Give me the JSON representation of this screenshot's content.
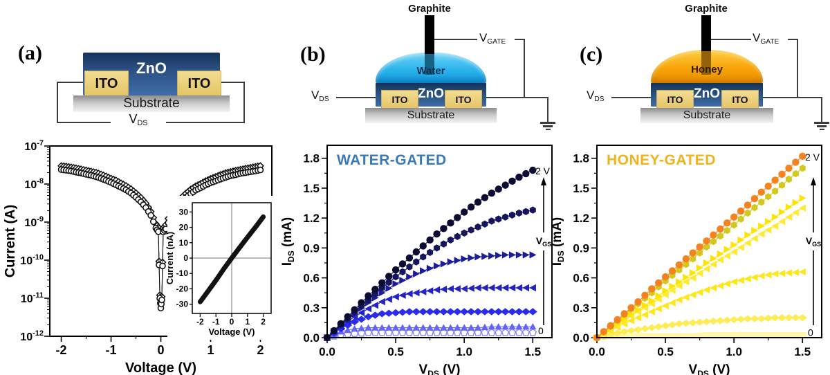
{
  "colors": {
    "water_accent": "#3a7ab8",
    "honey_accent": "#f0b41a",
    "water_liquid": "#2ab3ec",
    "honey_liquid": "#f7a307",
    "zno_blue": "#2c5184",
    "ito_gold": "#edd17c"
  },
  "schematics": {
    "a": {
      "panel_label": "(a)",
      "zno": "ZnO",
      "ito_left": "ITO",
      "ito_right": "ITO",
      "substrate": "Substrate",
      "vds": {
        "main": "V",
        "sub": "DS"
      }
    },
    "b": {
      "panel_label": "(b)",
      "graphite": "Graphite",
      "liquid": "Water",
      "zno": "ZnO",
      "ito_left": "ITO",
      "ito_right": "ITO",
      "substrate": "Substrate",
      "vds": {
        "main": "V",
        "sub": "DS"
      },
      "vgate": {
        "main": "V",
        "sub": "GATE"
      }
    },
    "c": {
      "panel_label": "(c)",
      "graphite": "Graphite",
      "liquid": "Honey",
      "zno": "ZnO",
      "ito_left": "ITO",
      "ito_right": "ITO",
      "substrate": "Substrate",
      "vds": {
        "main": "V",
        "sub": "DS"
      },
      "vgate": {
        "main": "V",
        "sub": "GATE"
      }
    }
  },
  "chart_data": [
    {
      "id": "iv-log",
      "type": "scatter",
      "panel": "a",
      "xlabel": "Voltage (V)",
      "ylabel": "Current (A)",
      "x_ticks": [
        -2,
        -1,
        0,
        1,
        2
      ],
      "x_minor": [
        -1.5,
        -0.5,
        0.5,
        1.5
      ],
      "xlim": [
        -2.23,
        2.23
      ],
      "y_scale": "log",
      "y_exp_range": [
        -12,
        -7
      ],
      "grid": false,
      "series": [
        {
          "name": "iv-sweep-diamonds",
          "marker": "diamond-open",
          "color": "#111111",
          "x": [
            -2.0,
            -1.9,
            -1.8,
            -1.7,
            -1.6,
            -1.5,
            -1.4,
            -1.3,
            -1.2,
            -1.1,
            -1.0,
            -0.9,
            -0.8,
            -0.7,
            -0.6,
            -0.5,
            -0.4,
            -0.3,
            -0.2,
            -0.1,
            -0.05,
            -0.02,
            0,
            0.02,
            0.05,
            0.1,
            0.2,
            0.3,
            0.4,
            0.5,
            0.6,
            0.7,
            0.8,
            0.9,
            1.0,
            1.1,
            1.2,
            1.3,
            1.4,
            1.5,
            1.6,
            1.7,
            1.8,
            1.9,
            2.0
          ],
          "y": [
            3e-08,
            2.9e-08,
            2.75e-08,
            2.6e-08,
            2.45e-08,
            2.3e-08,
            2.15e-08,
            2e-08,
            1.8e-08,
            1.6e-08,
            1.4e-08,
            1.25e-08,
            1.05e-08,
            9e-09,
            7.4e-09,
            5.8e-09,
            4.4e-09,
            3.1e-09,
            1.9e-09,
            9e-10,
            7.2e-10,
            1.2e-11,
            7e-12,
            1.1e-11,
            7e-10,
            8.5e-10,
            1.8e-09,
            3e-09,
            4.2e-09,
            5.6e-09,
            7.2e-09,
            8.8e-09,
            1.02e-08,
            1.2e-08,
            1.38e-08,
            1.55e-08,
            1.75e-08,
            1.95e-08,
            2.1e-08,
            2.25e-08,
            2.4e-08,
            2.55e-08,
            2.7e-08,
            2.85e-08,
            3e-08
          ]
        },
        {
          "name": "iv-sweep-circles",
          "marker": "circle-open",
          "color": "#111111",
          "x": [
            -2.0,
            -1.9,
            -1.8,
            -1.7,
            -1.6,
            -1.5,
            -1.4,
            -1.3,
            -1.2,
            -1.1,
            -1.0,
            -0.9,
            -0.8,
            -0.7,
            -0.6,
            -0.5,
            -0.4,
            -0.3,
            -0.2,
            -0.1,
            -0.05,
            -0.02,
            0,
            0.02,
            0.05,
            0.1,
            0.2,
            0.3,
            0.4,
            0.5,
            0.6,
            0.7,
            0.8,
            0.9,
            1.0,
            1.1,
            1.2,
            1.3,
            1.4,
            1.5,
            1.6,
            1.7,
            1.8,
            1.9,
            2.0
          ],
          "y": [
            2.4e-08,
            2.3e-08,
            2.2e-08,
            2.05e-08,
            1.95e-08,
            1.8e-08,
            1.7e-08,
            1.55e-08,
            1.4e-08,
            1.25e-08,
            1.1e-08,
            9.5e-09,
            8.2e-09,
            7e-09,
            5.8e-09,
            4.5e-09,
            3.4e-09,
            2.4e-09,
            1.5e-09,
            7e-10,
            5.6e-10,
            1e-11,
            5.5e-12,
            9e-12,
            5.5e-10,
            6.6e-10,
            1.4e-09,
            2.3e-09,
            3.3e-09,
            4.4e-09,
            5.6e-09,
            6.9e-09,
            8e-09,
            9.4e-09,
            1.08e-08,
            1.2e-08,
            1.35e-08,
            1.5e-08,
            1.65e-08,
            1.75e-08,
            1.9e-08,
            2e-08,
            2.1e-08,
            2.2e-08,
            2.35e-08
          ]
        }
      ],
      "inset": {
        "xlabel": "Voltage (V)",
        "ylabel": "Current (nA)",
        "xlim": [
          -2.5,
          2.5
        ],
        "ylim": [
          -36,
          36
        ],
        "x_ticks": [
          -2,
          -1,
          0,
          1,
          2
        ],
        "y_ticks": [
          -30,
          -20,
          -10,
          0,
          10,
          20,
          30
        ],
        "series": [
          {
            "name": "linear-iv-band",
            "color": "#111111",
            "width": 7,
            "x": [
              -2,
              -1.5,
              -1,
              -0.5,
              0,
              0.5,
              1,
              1.5,
              2
            ],
            "y": [
              -28.5,
              -21.5,
              -14.5,
              -7,
              0,
              6.8,
              13.5,
              20,
              26.8
            ]
          }
        ]
      }
    },
    {
      "id": "water-output",
      "type": "scatter",
      "panel": "b",
      "title": "WATER-GATED",
      "title_color": "#3a7ab8",
      "xlabel": {
        "main": "V",
        "sub": "DS",
        "rest": " (V)"
      },
      "ylabel": {
        "main": "I",
        "sub": "DS",
        "rest": " (mA)"
      },
      "xlim": [
        0,
        1.64
      ],
      "ylim": [
        0,
        1.93
      ],
      "x_ticks": [
        "0.0",
        "0.5",
        "1.0",
        "1.5"
      ],
      "x_minor": [
        0.25,
        0.75,
        1.25
      ],
      "y_ticks": [
        "0.0",
        "0.3",
        "0.6",
        "0.9",
        "1.2",
        "1.5",
        "1.8"
      ],
      "y_minor": [
        0.15,
        0.45,
        0.75,
        1.05,
        1.35,
        1.65
      ],
      "annotations": {
        "top_label": "2 V",
        "bottom_label": "0",
        "arrow_label_main": "V",
        "arrow_label_sub": "GS"
      },
      "x": [
        0,
        0.1,
        0.2,
        0.3,
        0.4,
        0.5,
        0.6,
        0.7,
        0.8,
        0.9,
        1.0,
        1.1,
        1.2,
        1.3,
        1.4,
        1.5
      ],
      "series": [
        {
          "name": "vgs-max-2V",
          "marker": "circle",
          "color": "#0b0b33",
          "values": [
            0,
            0.14,
            0.28,
            0.42,
            0.55,
            0.68,
            0.8,
            0.92,
            1.04,
            1.15,
            1.26,
            1.36,
            1.45,
            1.53,
            1.61,
            1.68
          ]
        },
        {
          "name": "vgs-step-5",
          "marker": "hexagon",
          "color": "#15155e",
          "values": [
            0,
            0.13,
            0.26,
            0.38,
            0.5,
            0.61,
            0.71,
            0.81,
            0.9,
            0.98,
            1.05,
            1.11,
            1.17,
            1.21,
            1.25,
            1.28
          ]
        },
        {
          "name": "vgs-step-4",
          "marker": "triangle-right",
          "color": "#1b1b9e",
          "values": [
            0,
            0.12,
            0.24,
            0.35,
            0.45,
            0.54,
            0.61,
            0.67,
            0.72,
            0.76,
            0.79,
            0.81,
            0.82,
            0.83,
            0.83,
            0.83
          ]
        },
        {
          "name": "vgs-step-3",
          "marker": "triangle-left",
          "color": "#2222c8",
          "values": [
            0,
            0.11,
            0.21,
            0.29,
            0.36,
            0.41,
            0.44,
            0.46,
            0.48,
            0.49,
            0.49,
            0.5,
            0.5,
            0.5,
            0.5,
            0.5
          ]
        },
        {
          "name": "vgs-step-2",
          "marker": "diamond",
          "color": "#2b2bef",
          "values": [
            0,
            0.09,
            0.16,
            0.21,
            0.24,
            0.25,
            0.26,
            0.26,
            0.26,
            0.26,
            0.26,
            0.26,
            0.26,
            0.26,
            0.26,
            0.26
          ]
        },
        {
          "name": "vgs-step-1",
          "marker": "triangle-up",
          "color": "#6464f5",
          "values": [
            0,
            0.06,
            0.09,
            0.1,
            0.1,
            0.1,
            0.1,
            0.1,
            0.1,
            0.1,
            0.1,
            0.1,
            0.11,
            0.11,
            0.11,
            0.11
          ]
        },
        {
          "name": "vgs-min-0",
          "marker": "pentagon-open",
          "color": "#8a8af2",
          "values": [
            0,
            0.03,
            0.04,
            0.05,
            0.05,
            0.05,
            0.05,
            0.05,
            0.05,
            0.05,
            0.05,
            0.05,
            0.05,
            0.05,
            0.05,
            0.05
          ]
        }
      ]
    },
    {
      "id": "honey-output",
      "type": "scatter",
      "panel": "c",
      "title": "HONEY-GATED",
      "title_color": "#f0b41a",
      "xlabel": {
        "main": "V",
        "sub": "DS",
        "rest": " (V)"
      },
      "ylabel": {
        "main": "I",
        "sub": "DS",
        "rest": " (mA)"
      },
      "xlim": [
        0,
        1.64
      ],
      "ylim": [
        0,
        1.93
      ],
      "x_ticks": [
        "0.0",
        "0.5",
        "1.0",
        "1.5"
      ],
      "x_minor": [
        0.25,
        0.75,
        1.25
      ],
      "y_ticks": [
        "0.0",
        "0.3",
        "0.6",
        "0.9",
        "1.2",
        "1.5",
        "1.8"
      ],
      "y_minor": [
        0.15,
        0.45,
        0.75,
        1.05,
        1.35,
        1.65
      ],
      "annotations": {
        "top_label": "2 V",
        "bottom_label": "0",
        "arrow_label_main": "V",
        "arrow_label_sub": "GS"
      },
      "x": [
        0,
        0.1,
        0.2,
        0.3,
        0.4,
        0.5,
        0.6,
        0.7,
        0.8,
        0.9,
        1.0,
        1.1,
        1.2,
        1.3,
        1.4,
        1.5
      ],
      "series": [
        {
          "name": "vgs-max-2V",
          "marker": "circle",
          "color": "#f5821e",
          "values": [
            0,
            0.12,
            0.24,
            0.36,
            0.49,
            0.61,
            0.73,
            0.85,
            0.97,
            1.09,
            1.21,
            1.33,
            1.46,
            1.58,
            1.7,
            1.82
          ]
        },
        {
          "name": "vgs-step-5",
          "marker": "hexagon",
          "color": "#d3c81d",
          "values": [
            0,
            0.11,
            0.23,
            0.34,
            0.45,
            0.57,
            0.68,
            0.79,
            0.91,
            1.02,
            1.13,
            1.25,
            1.36,
            1.47,
            1.59,
            1.7
          ]
        },
        {
          "name": "vgs-step-4",
          "marker": "triangle-right",
          "color": "#ffe400",
          "values": [
            0,
            0.09,
            0.19,
            0.28,
            0.37,
            0.47,
            0.56,
            0.65,
            0.75,
            0.84,
            0.93,
            1.03,
            1.12,
            1.21,
            1.31,
            1.4
          ]
        },
        {
          "name": "vgs-step-3",
          "marker": "triangle-left",
          "color": "#ffea2e",
          "values": [
            0,
            0.08,
            0.17,
            0.26,
            0.34,
            0.43,
            0.52,
            0.6,
            0.69,
            0.78,
            0.86,
            0.95,
            1.04,
            1.12,
            1.21,
            1.3
          ]
        },
        {
          "name": "vgs-step-2",
          "marker": "triangle-left",
          "color": "#ffe616",
          "values": [
            0,
            0.07,
            0.14,
            0.2,
            0.26,
            0.32,
            0.38,
            0.43,
            0.48,
            0.52,
            0.56,
            0.59,
            0.62,
            0.64,
            0.65,
            0.66
          ]
        },
        {
          "name": "vgs-step-1",
          "marker": "diamond",
          "color": "#ffec55",
          "values": [
            0,
            0.03,
            0.06,
            0.08,
            0.1,
            0.12,
            0.14,
            0.15,
            0.16,
            0.17,
            0.18,
            0.19,
            0.19,
            0.2,
            0.2,
            0.2
          ]
        },
        {
          "name": "vgs-min-0",
          "marker": "square",
          "color": "#fff6a6",
          "values": [
            0,
            0.01,
            0.01,
            0.02,
            0.02,
            0.02,
            0.02,
            0.02,
            0.03,
            0.03,
            0.03,
            0.03,
            0.03,
            0.03,
            0.03,
            0.03
          ]
        }
      ]
    }
  ]
}
